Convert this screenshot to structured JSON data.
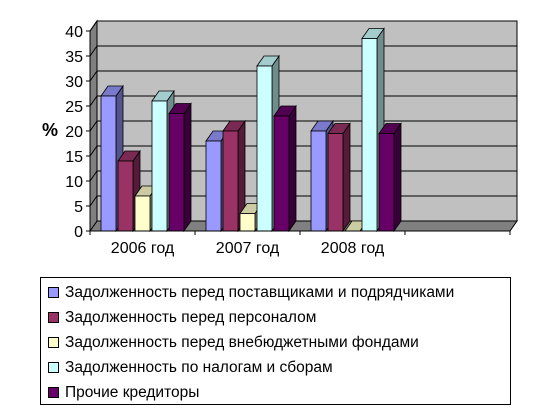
{
  "chart_data": {
    "type": "bar",
    "title": "",
    "xlabel": "",
    "ylabel": "%",
    "ylim": [
      0,
      40
    ],
    "yticks": [
      "0",
      "5",
      "10",
      "15",
      "20",
      "25",
      "30",
      "35",
      "40"
    ],
    "grid": true,
    "legend_position": "bottom",
    "categories": [
      "2006 год",
      "2007 год",
      "2008 год"
    ],
    "series": [
      {
        "name": "Задолженность перед поставщиками и подрядчиками",
        "color": "#9999ff",
        "values": [
          27,
          18,
          20
        ]
      },
      {
        "name": "Задолженность перед персоналом",
        "color": "#993366",
        "values": [
          14,
          20,
          19.5
        ]
      },
      {
        "name": "Задолженность перед внебюджетными фондами",
        "color": "#ffffcc",
        "values": [
          7,
          3.5,
          0
        ]
      },
      {
        "name": "Задолженность по налогам и сборам",
        "color": "#ccffff",
        "values": [
          26,
          33,
          38.5
        ]
      },
      {
        "name": "Прочие кредиторы",
        "color": "#660066",
        "values": [
          23.5,
          23,
          19.5
        ]
      }
    ]
  }
}
